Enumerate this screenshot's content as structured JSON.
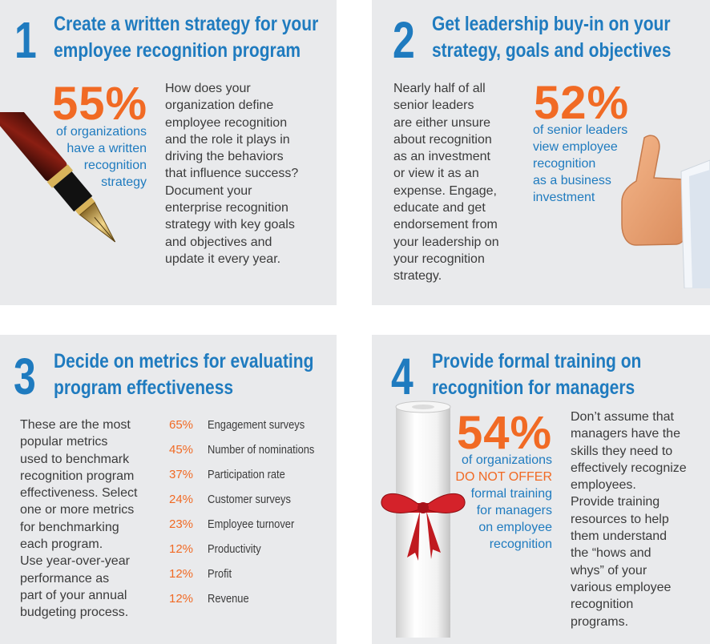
{
  "step1": {
    "number": "1",
    "title_line1": "Create a written strategy for your",
    "title_line2": "employee recognition program",
    "stat_value": "55%",
    "stat_text": "of organizations\nhave a written\nrecognition\nstrategy",
    "body": "How does your\norganization define\nemployee recognition\nand the role it plays in\ndriving the behaviors\nthat influence success?\nDocument your\nenterprise recognition\nstrategy with key goals\nand objectives and\nupdate it every year.",
    "image": "fountain-pen"
  },
  "step2": {
    "number": "2",
    "title_line1": "Get leadership buy-in on your",
    "title_line2": "strategy, goals and objectives",
    "stat_value": "52%",
    "stat_text": "of senior leaders\nview employee\nrecognition\nas a business\ninvestment",
    "body": "Nearly half of all\nsenior leaders\nare either unsure\nabout recognition\nas an investment\nor view it as an\nexpense. Engage,\neducate and get\nendorsement from\nyour leadership on\nyour recognition\nstrategy.",
    "image": "thumbs-up"
  },
  "step3": {
    "number": "3",
    "title_line1": "Decide on metrics for evaluating",
    "title_line2": "program effectiveness",
    "body": "These are the most\npopular metrics\nused to benchmark\nrecognition program\neffectiveness. Select\none or more metrics\nfor benchmarking\neach program.\nUse year-over-year\nperformance as\npart of your annual\nbudgeting process.",
    "metrics": [
      {
        "pct": "65%",
        "label": "Engagement surveys"
      },
      {
        "pct": "45%",
        "label": "Number of nominations"
      },
      {
        "pct": "37%",
        "label": "Participation rate"
      },
      {
        "pct": "24%",
        "label": "Customer surveys"
      },
      {
        "pct": "23%",
        "label": "Employee turnover"
      },
      {
        "pct": "12%",
        "label": "Productivity"
      },
      {
        "pct": "12%",
        "label": "Profit"
      },
      {
        "pct": "12%",
        "label": "Revenue"
      }
    ]
  },
  "step4": {
    "number": "4",
    "title_line1": "Provide formal training on",
    "title_line2": "recognition for managers",
    "stat_value": "54%",
    "stat_line1": "of organizations",
    "stat_line2": "DO NOT OFFER",
    "stat_line3": "formal training\nfor managers\non employee\nrecognition",
    "body": "Don’t assume that\nmanagers have the\nskills they need to\neffectively recognize\nemployees.\nProvide training\nresources to help\nthem understand\nthe “hows and\nwhys” of your\nvarious employee\nrecognition\nprograms.",
    "image": "diploma-scroll-with-red-bow"
  },
  "colors": {
    "accent_blue": "#1f7bbf",
    "accent_orange": "#f16a24",
    "panel_bg": "#e9eaec"
  }
}
